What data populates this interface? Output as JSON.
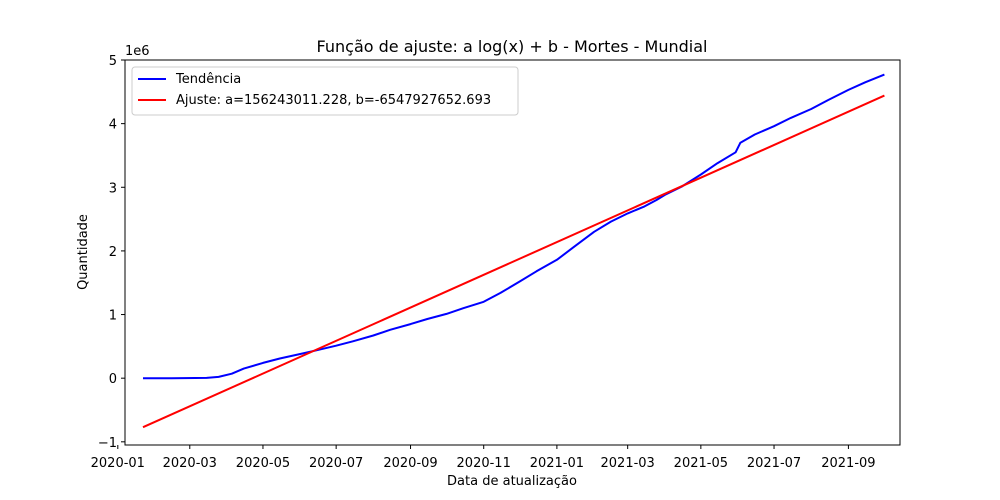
{
  "chart_data": {
    "type": "line",
    "title": "Função de ajuste: a log(x) + b - Mortes - Mundial",
    "xlabel": "Data de atualização",
    "ylabel": "Quantidade",
    "y_offset_label": "1e6",
    "xlim": [
      "2020-01-07",
      "2021-10-14"
    ],
    "ylim": [
      -1.05,
      5.0
    ],
    "y_scale_factor": 1000000,
    "x_tick_labels": [
      "2020-01",
      "2020-03",
      "2020-05",
      "2020-07",
      "2020-09",
      "2020-11",
      "2021-01",
      "2021-03",
      "2021-05",
      "2021-07",
      "2021-09"
    ],
    "y_ticks": [
      -1,
      0,
      1,
      2,
      3,
      4,
      5
    ],
    "y_tick_labels": [
      "−1",
      "0",
      "1",
      "2",
      "3",
      "4",
      "5"
    ],
    "legend_position": "top-left",
    "grid": false,
    "series": [
      {
        "name": "Tendência",
        "color": "#0000ff",
        "x": [
          "2020-01-22",
          "2020-02-15",
          "2020-03-15",
          "2020-03-25",
          "2020-04-05",
          "2020-04-15",
          "2020-05-01",
          "2020-05-15",
          "2020-06-01",
          "2020-06-15",
          "2020-07-01",
          "2020-07-15",
          "2020-08-01",
          "2020-08-15",
          "2020-09-01",
          "2020-09-15",
          "2020-10-01",
          "2020-10-15",
          "2020-11-01",
          "2020-11-15",
          "2020-12-01",
          "2020-12-15",
          "2021-01-01",
          "2021-01-15",
          "2021-02-01",
          "2021-02-15",
          "2021-03-01",
          "2021-03-15",
          "2021-03-25",
          "2021-04-01",
          "2021-04-15",
          "2021-05-01",
          "2021-05-15",
          "2021-05-30",
          "2021-06-03",
          "2021-06-15",
          "2021-07-01",
          "2021-07-15",
          "2021-08-01",
          "2021-08-15",
          "2021-09-01",
          "2021-09-15",
          "2021-10-01"
        ],
        "values": [
          0.0,
          0.0,
          0.005,
          0.02,
          0.07,
          0.15,
          0.24,
          0.31,
          0.38,
          0.44,
          0.51,
          0.58,
          0.67,
          0.76,
          0.85,
          0.93,
          1.01,
          1.1,
          1.2,
          1.34,
          1.52,
          1.68,
          1.86,
          2.06,
          2.3,
          2.46,
          2.59,
          2.7,
          2.8,
          2.88,
          3.01,
          3.2,
          3.38,
          3.55,
          3.7,
          3.83,
          3.96,
          4.09,
          4.23,
          4.37,
          4.53,
          4.65,
          4.77
        ]
      },
      {
        "name": "Ajuste: a=156243011.228, b=-6547927652.693",
        "color": "#ff0000",
        "x": [
          "2020-01-22",
          "2021-10-01"
        ],
        "values": [
          -0.77,
          4.44
        ]
      }
    ]
  }
}
